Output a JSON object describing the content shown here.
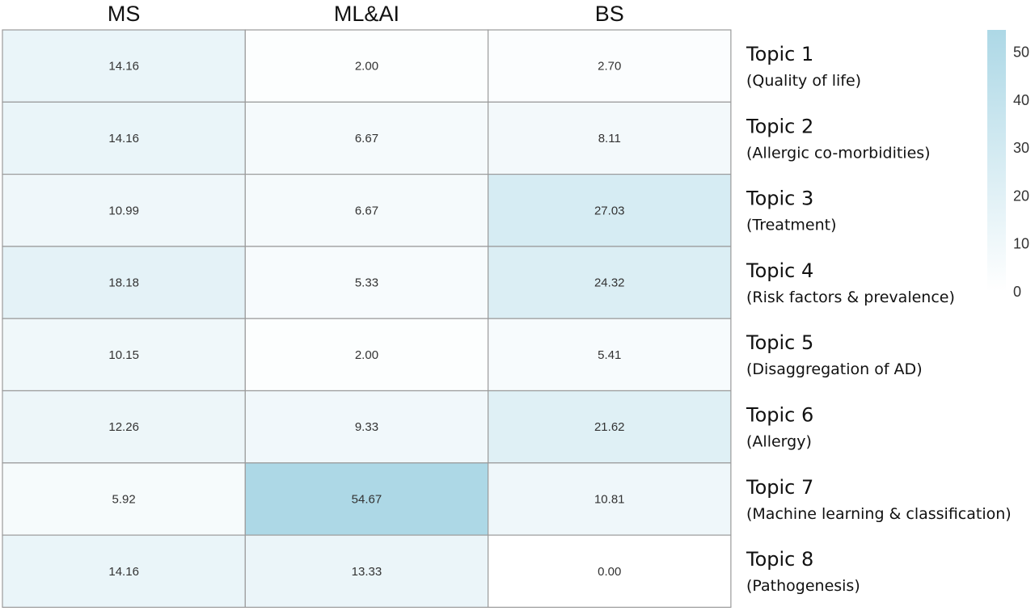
{
  "chart_data": {
    "type": "heatmap",
    "columns": [
      "MS",
      "ML&AI",
      "BS"
    ],
    "rows": [
      {
        "title": "Topic 1",
        "subtitle": "(Quality of life)",
        "values": [
          "14.16",
          "2.00",
          "2.70"
        ]
      },
      {
        "title": "Topic 2",
        "subtitle": "(Allergic co-morbidities)",
        "values": [
          "14.16",
          "6.67",
          "8.11"
        ]
      },
      {
        "title": "Topic 3",
        "subtitle": "(Treatment)",
        "values": [
          "10.99",
          "6.67",
          "27.03"
        ]
      },
      {
        "title": "Topic 4",
        "subtitle": "(Risk factors & prevalence)",
        "values": [
          "18.18",
          "5.33",
          "24.32"
        ]
      },
      {
        "title": "Topic 5",
        "subtitle": "(Disaggregation of AD)",
        "values": [
          "10.15",
          "2.00",
          "5.41"
        ]
      },
      {
        "title": "Topic 6",
        "subtitle": "(Allergy)",
        "values": [
          "12.26",
          "9.33",
          "21.62"
        ]
      },
      {
        "title": "Topic 7",
        "subtitle": "(Machine learning & classification)",
        "values": [
          "5.92",
          "54.67",
          "10.81"
        ]
      },
      {
        "title": "Topic 8",
        "subtitle": "(Pathogenesis)",
        "values": [
          "14.16",
          "13.33",
          "0.00"
        ]
      }
    ],
    "colorscale": {
      "min": 0,
      "max": 54.67,
      "low_color": "#ffffff",
      "high_color": "#add8e6"
    },
    "colorbar_ticks": [
      0,
      10,
      20,
      30,
      40,
      50
    ]
  }
}
